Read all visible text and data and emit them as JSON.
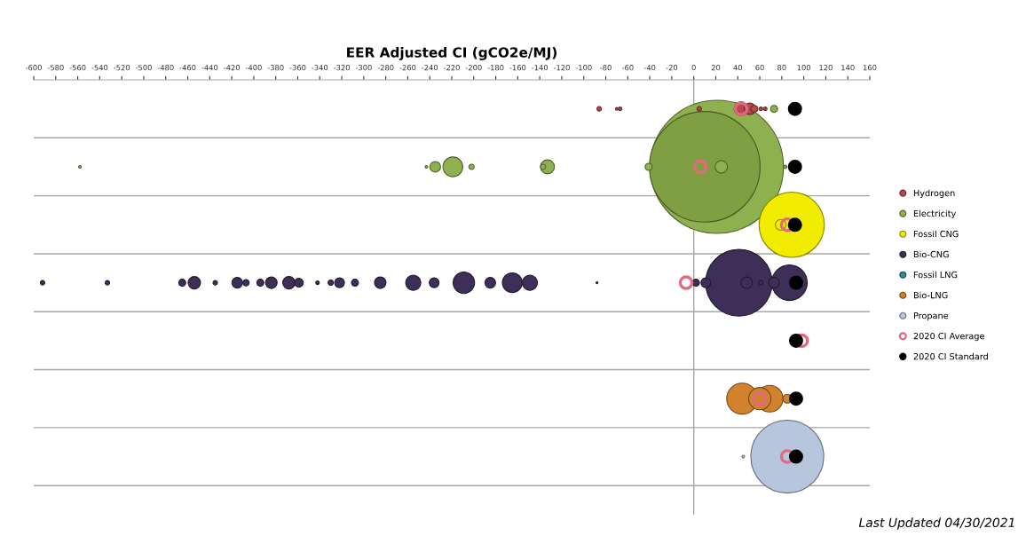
{
  "chart_data": {
    "type": "bubble",
    "orientation": "horizontal",
    "xlabel": "EER Adjusted CI (gCO2e/MJ)",
    "categories": [
      null,
      null,
      null,
      null,
      null,
      null,
      null
    ],
    "xlim": [
      -600,
      160
    ],
    "xticks": [
      -600,
      -580,
      -560,
      -540,
      -520,
      -500,
      -480,
      -460,
      -440,
      -420,
      -400,
      -380,
      -360,
      -340,
      -320,
      -300,
      -280,
      -260,
      -240,
      -220,
      -200,
      -180,
      -160,
      -140,
      -120,
      -100,
      -80,
      -60,
      -40,
      -20,
      0,
      20,
      40,
      60,
      80,
      100,
      120,
      140,
      160
    ],
    "grid": "y",
    "legend": "right",
    "ref_lines": [
      {
        "axis": "x",
        "value": 0,
        "color": "#a6a6a6"
      }
    ],
    "annotations": [
      "Last Updated 04/30/2021"
    ],
    "series": [
      {
        "name": "Hydrogen",
        "type": "bubble",
        "color": "#b9484d",
        "values": [
          43,
          null,
          null,
          null,
          null,
          null,
          null
        ],
        "sizes": [
          0.011,
          null,
          null,
          null,
          null,
          null,
          null
        ]
      },
      {
        "type": "bubble",
        "color": "#b9484d",
        "values": [
          -86,
          null,
          null,
          null,
          null,
          null,
          null
        ],
        "sizes": [
          0.0011,
          null,
          null,
          null,
          null,
          null,
          null
        ]
      },
      {
        "type": "bubble",
        "color": "#b9484d",
        "values": [
          -70,
          null,
          null,
          null,
          null,
          null,
          null
        ],
        "sizes": [
          0.0004,
          null,
          null,
          null,
          null,
          null,
          null
        ]
      },
      {
        "type": "bubble",
        "color": "#b9484d",
        "values": [
          -67,
          null,
          null,
          null,
          null,
          null,
          null
        ],
        "sizes": [
          0.0007,
          null,
          null,
          null,
          null,
          null,
          null
        ]
      },
      {
        "type": "bubble",
        "color": "#b9484d",
        "values": [
          5,
          null,
          null,
          null,
          null,
          null,
          null
        ],
        "sizes": [
          0.0011,
          null,
          null,
          null,
          null,
          null,
          null
        ]
      },
      {
        "type": "bubble",
        "color": "#b9484d",
        "values": [
          51,
          null,
          null,
          null,
          null,
          null,
          null
        ],
        "sizes": [
          0.0075,
          null,
          null,
          null,
          null,
          null,
          null
        ]
      },
      {
        "type": "bubble",
        "color": "#b9484d",
        "values": [
          55,
          null,
          null,
          null,
          null,
          null,
          null
        ],
        "sizes": [
          0.0028,
          null,
          null,
          null,
          null,
          null,
          null
        ]
      },
      {
        "type": "bubble",
        "color": "#b9484d",
        "values": [
          61,
          null,
          null,
          null,
          null,
          null,
          null
        ],
        "sizes": [
          0.0007,
          null,
          null,
          null,
          null,
          null,
          null
        ]
      },
      {
        "type": "bubble",
        "color": "#b9484d",
        "values": [
          65,
          null,
          null,
          null,
          null,
          null,
          null
        ],
        "sizes": [
          0.0007,
          null,
          null,
          null,
          null,
          null,
          null
        ]
      },
      {
        "type": "bubble",
        "color": "#8fb04e",
        "values": [
          73,
          null,
          null,
          null,
          null,
          null,
          null
        ],
        "sizes": [
          0.0028,
          null,
          null,
          null,
          null,
          null,
          null
        ]
      },
      {
        "name": "Electricity",
        "type": "bubble",
        "color": "#8fb04e",
        "values": [
          null,
          21,
          null,
          null,
          null,
          null,
          null
        ],
        "sizes": [
          null,
          1,
          null,
          null,
          null,
          null,
          null
        ]
      },
      {
        "type": "bubble",
        "color": "#7f9f42",
        "values": [
          null,
          10,
          null,
          null,
          null,
          null,
          null
        ],
        "sizes": [
          null,
          0.69,
          null,
          null,
          null,
          null,
          null
        ]
      },
      {
        "type": "bubble",
        "color": "#8fb04e",
        "values": [
          null,
          -558,
          null,
          null,
          null,
          null,
          null
        ],
        "sizes": [
          null,
          0.0004,
          null,
          null,
          null,
          null,
          null
        ]
      },
      {
        "type": "bubble",
        "color": "#8fb04e",
        "values": [
          null,
          -243,
          null,
          null,
          null,
          null,
          null
        ],
        "sizes": [
          null,
          0.0004,
          null,
          null,
          null,
          null,
          null
        ]
      },
      {
        "type": "bubble",
        "color": "#8fb04e",
        "values": [
          null,
          -235,
          null,
          null,
          null,
          null,
          null
        ],
        "sizes": [
          null,
          0.0064,
          null,
          null,
          null,
          null,
          null
        ]
      },
      {
        "type": "bubble",
        "color": "#8fb04e",
        "values": [
          null,
          -219,
          null,
          null,
          null,
          null,
          null
        ],
        "sizes": [
          null,
          0.022,
          null,
          null,
          null,
          null,
          null
        ]
      },
      {
        "type": "bubble",
        "color": "#8fb04e",
        "values": [
          null,
          -202,
          null,
          null,
          null,
          null,
          null
        ],
        "sizes": [
          null,
          0.0016,
          null,
          null,
          null,
          null,
          null
        ]
      },
      {
        "type": "bubble",
        "color": "#8fb04e",
        "values": [
          null,
          -137,
          null,
          null,
          null,
          null,
          null
        ],
        "sizes": [
          null,
          0.0016,
          null,
          null,
          null,
          null,
          null
        ]
      },
      {
        "type": "bubble",
        "color": "#8fb04e",
        "values": [
          null,
          -133,
          null,
          null,
          null,
          null,
          null
        ],
        "sizes": [
          null,
          0.011,
          null,
          null,
          null,
          null,
          null
        ]
      },
      {
        "type": "bubble",
        "color": "#8fb04e",
        "values": [
          null,
          -41,
          null,
          null,
          null,
          null,
          null
        ],
        "sizes": [
          null,
          0.0028,
          null,
          null,
          null,
          null,
          null
        ]
      },
      {
        "type": "bubble",
        "color": "#8fb04e",
        "values": [
          null,
          25,
          null,
          null,
          null,
          null,
          null
        ],
        "sizes": [
          null,
          0.0087,
          null,
          null,
          null,
          null,
          null
        ]
      },
      {
        "type": "bubble",
        "color": "#8fb04e",
        "values": [
          null,
          83,
          null,
          null,
          null,
          null,
          null
        ],
        "sizes": [
          null,
          0.0007,
          null,
          null,
          null,
          null,
          null
        ]
      },
      {
        "name": "Fossil CNG",
        "type": "bubble",
        "color": "#f2ec00",
        "values": [
          null,
          null,
          89,
          null,
          null,
          null,
          null
        ],
        "sizes": [
          null,
          null,
          0.24,
          null,
          null,
          null,
          null
        ]
      },
      {
        "type": "bubble",
        "color": "#f2ec00",
        "values": [
          null,
          null,
          79,
          null,
          null,
          null,
          null
        ],
        "sizes": [
          null,
          null,
          0.0064,
          null,
          null,
          null,
          null
        ]
      },
      {
        "name": "Bio-CNG",
        "type": "bubble",
        "color": "#3d2f57",
        "values": [
          null,
          null,
          null,
          41,
          null,
          null,
          null
        ],
        "sizes": [
          null,
          null,
          null,
          0.25,
          null,
          null,
          null
        ]
      },
      {
        "type": "bubble",
        "color": "#3d2f57",
        "values": [
          null,
          null,
          null,
          87,
          null,
          null,
          null
        ],
        "sizes": [
          null,
          null,
          null,
          0.071,
          null,
          null,
          null
        ]
      },
      {
        "type": "bubble",
        "color": "#3d2f57",
        "values": [
          null,
          null,
          null,
          -592,
          null,
          null,
          null
        ],
        "sizes": [
          null,
          null,
          null,
          0.0011,
          null,
          null,
          null
        ]
      },
      {
        "type": "bubble",
        "color": "#3d2f57",
        "values": [
          null,
          null,
          null,
          -533,
          null,
          null,
          null
        ],
        "sizes": [
          null,
          null,
          null,
          0.0011,
          null,
          null,
          null
        ]
      },
      {
        "type": "bubble",
        "color": "#3d2f57",
        "values": [
          null,
          null,
          null,
          -465,
          null,
          null,
          null
        ],
        "sizes": [
          null,
          null,
          null,
          0.0028,
          null,
          null,
          null
        ]
      },
      {
        "type": "bubble",
        "color": "#3d2f57",
        "values": [
          null,
          null,
          null,
          -454,
          null,
          null,
          null
        ],
        "sizes": [
          null,
          null,
          null,
          0.0087,
          null,
          null,
          null
        ]
      },
      {
        "type": "bubble",
        "color": "#3d2f57",
        "values": [
          null,
          null,
          null,
          -435,
          null,
          null,
          null
        ],
        "sizes": [
          null,
          null,
          null,
          0.0011,
          null,
          null,
          null
        ]
      },
      {
        "type": "bubble",
        "color": "#3d2f57",
        "values": [
          null,
          null,
          null,
          -415,
          null,
          null,
          null
        ],
        "sizes": [
          null,
          null,
          null,
          0.0064,
          null,
          null,
          null
        ]
      },
      {
        "type": "bubble",
        "color": "#3d2f57",
        "values": [
          null,
          null,
          null,
          -407,
          null,
          null,
          null
        ],
        "sizes": [
          null,
          null,
          null,
          0.0022,
          null,
          null,
          null
        ]
      },
      {
        "type": "bubble",
        "color": "#3d2f57",
        "values": [
          null,
          null,
          null,
          -394,
          null,
          null,
          null
        ],
        "sizes": [
          null,
          null,
          null,
          0.0028,
          null,
          null,
          null
        ]
      },
      {
        "type": "bubble",
        "color": "#3d2f57",
        "values": [
          null,
          null,
          null,
          -384,
          null,
          null,
          null
        ],
        "sizes": [
          null,
          null,
          null,
          0.0075,
          null,
          null,
          null
        ]
      },
      {
        "type": "bubble",
        "color": "#3d2f57",
        "values": [
          null,
          null,
          null,
          -368,
          null,
          null,
          null
        ],
        "sizes": [
          null,
          null,
          null,
          0.0087,
          null,
          null,
          null
        ]
      },
      {
        "type": "bubble",
        "color": "#3d2f57",
        "values": [
          null,
          null,
          null,
          -359,
          null,
          null,
          null
        ],
        "sizes": [
          null,
          null,
          null,
          0.0044,
          null,
          null,
          null
        ]
      },
      {
        "type": "bubble",
        "color": "#3d2f57",
        "values": [
          null,
          null,
          null,
          -342,
          null,
          null,
          null
        ],
        "sizes": [
          null,
          null,
          null,
          0.0007,
          null,
          null,
          null
        ]
      },
      {
        "type": "bubble",
        "color": "#3d2f57",
        "values": [
          null,
          null,
          null,
          -330,
          null,
          null,
          null
        ],
        "sizes": [
          null,
          null,
          null,
          0.0016,
          null,
          null,
          null
        ]
      },
      {
        "type": "bubble",
        "color": "#3d2f57",
        "values": [
          null,
          null,
          null,
          -322,
          null,
          null,
          null
        ],
        "sizes": [
          null,
          null,
          null,
          0.0054,
          null,
          null,
          null
        ]
      },
      {
        "type": "bubble",
        "color": "#3d2f57",
        "values": [
          null,
          null,
          null,
          -308,
          null,
          null,
          null
        ],
        "sizes": [
          null,
          null,
          null,
          0.0028,
          null,
          null,
          null
        ]
      },
      {
        "type": "bubble",
        "color": "#3d2f57",
        "values": [
          null,
          null,
          null,
          -285,
          null,
          null,
          null
        ],
        "sizes": [
          null,
          null,
          null,
          0.0075,
          null,
          null,
          null
        ]
      },
      {
        "type": "bubble",
        "color": "#3d2f57",
        "values": [
          null,
          null,
          null,
          -255,
          null,
          null,
          null
        ],
        "sizes": [
          null,
          null,
          null,
          0.013,
          null,
          null,
          null
        ]
      },
      {
        "type": "bubble",
        "color": "#3d2f57",
        "values": [
          null,
          null,
          null,
          -236,
          null,
          null,
          null
        ],
        "sizes": [
          null,
          null,
          null,
          0.0054,
          null,
          null,
          null
        ]
      },
      {
        "type": "bubble",
        "color": "#3d2f57",
        "values": [
          null,
          null,
          null,
          -209,
          null,
          null,
          null
        ],
        "sizes": [
          null,
          null,
          null,
          0.026,
          null,
          null,
          null
        ]
      },
      {
        "type": "bubble",
        "color": "#3d2f57",
        "values": [
          null,
          null,
          null,
          -185,
          null,
          null,
          null
        ],
        "sizes": [
          null,
          null,
          null,
          0.0064,
          null,
          null,
          null
        ]
      },
      {
        "type": "bubble",
        "color": "#3d2f57",
        "values": [
          null,
          null,
          null,
          -165,
          null,
          null,
          null
        ],
        "sizes": [
          null,
          null,
          null,
          0.022,
          null,
          null,
          null
        ]
      },
      {
        "type": "bubble",
        "color": "#3d2f57",
        "values": [
          null,
          null,
          null,
          -149,
          null,
          null,
          null
        ],
        "sizes": [
          null,
          null,
          null,
          0.013,
          null,
          null,
          null
        ]
      },
      {
        "type": "bubble",
        "color": "#3d2f57",
        "values": [
          null,
          null,
          null,
          -88,
          null,
          null,
          null
        ],
        "sizes": [
          null,
          null,
          null,
          0.0002,
          null,
          null,
          null
        ]
      },
      {
        "type": "bubble",
        "color": "#3d2f57",
        "values": [
          null,
          null,
          null,
          2,
          null,
          null,
          null
        ],
        "sizes": [
          null,
          null,
          null,
          0.0028,
          null,
          null,
          null
        ]
      },
      {
        "type": "bubble",
        "color": "#3d2f57",
        "values": [
          null,
          null,
          null,
          11,
          null,
          null,
          null
        ],
        "sizes": [
          null,
          null,
          null,
          0.0054,
          null,
          null,
          null
        ]
      },
      {
        "type": "bubble",
        "color": "#3d2f57",
        "values": [
          null,
          null,
          null,
          48,
          null,
          null,
          null
        ],
        "sizes": [
          null,
          null,
          null,
          0.0075,
          null,
          null,
          null
        ]
      },
      {
        "type": "bubble",
        "color": "#3d2f57",
        "values": [
          null,
          null,
          null,
          61,
          null,
          null,
          null
        ],
        "sizes": [
          null,
          null,
          null,
          0.0011,
          null,
          null,
          null
        ]
      },
      {
        "type": "bubble",
        "color": "#3d2f57",
        "values": [
          null,
          null,
          null,
          73,
          null,
          null,
          null
        ],
        "sizes": [
          null,
          null,
          null,
          0.0064,
          null,
          null,
          null
        ]
      },
      {
        "name": "Fossil LNG",
        "type": "bubble",
        "color": "#2e8b8f",
        "values": [
          null,
          null,
          null,
          null,
          null,
          null,
          null
        ]
      },
      {
        "name": "Bio-LNG",
        "type": "bubble",
        "color": "#d0822c",
        "values": [
          null,
          null,
          null,
          null,
          null,
          44,
          null
        ],
        "sizes": [
          null,
          null,
          null,
          null,
          null,
          0.054,
          null
        ]
      },
      {
        "type": "bubble",
        "color": "#d0822c",
        "values": [
          null,
          null,
          null,
          null,
          null,
          69,
          null
        ],
        "sizes": [
          null,
          null,
          null,
          null,
          null,
          0.04,
          null
        ]
      },
      {
        "type": "bubble",
        "color": "#d0822c",
        "values": [
          null,
          null,
          null,
          null,
          null,
          60,
          null
        ],
        "sizes": [
          null,
          null,
          null,
          null,
          null,
          0.028,
          null
        ]
      },
      {
        "type": "bubble",
        "color": "#d0822c",
        "values": [
          null,
          null,
          null,
          null,
          null,
          85,
          null
        ],
        "sizes": [
          null,
          null,
          null,
          null,
          null,
          0.0044,
          null
        ]
      },
      {
        "name": "Propane",
        "type": "bubble",
        "color": "#b7c6dc",
        "values": [
          null,
          null,
          null,
          null,
          null,
          null,
          85
        ],
        "sizes": [
          null,
          null,
          null,
          null,
          null,
          null,
          0.3
        ]
      },
      {
        "type": "bubble",
        "color": "#b7c6dc",
        "values": [
          null,
          null,
          null,
          null,
          null,
          null,
          45
        ],
        "sizes": [
          null,
          null,
          null,
          null,
          null,
          null,
          0.0004
        ]
      },
      {
        "name": "2020 CI Average",
        "type": "scatter",
        "color": "#e36a82",
        "values": [
          43,
          6,
          85,
          -7,
          98,
          60,
          85
        ]
      },
      {
        "name": "2020 CI Standard",
        "type": "scatter",
        "color": "#000000",
        "values": [
          92,
          92,
          92,
          93,
          93,
          93,
          93
        ]
      }
    ]
  }
}
